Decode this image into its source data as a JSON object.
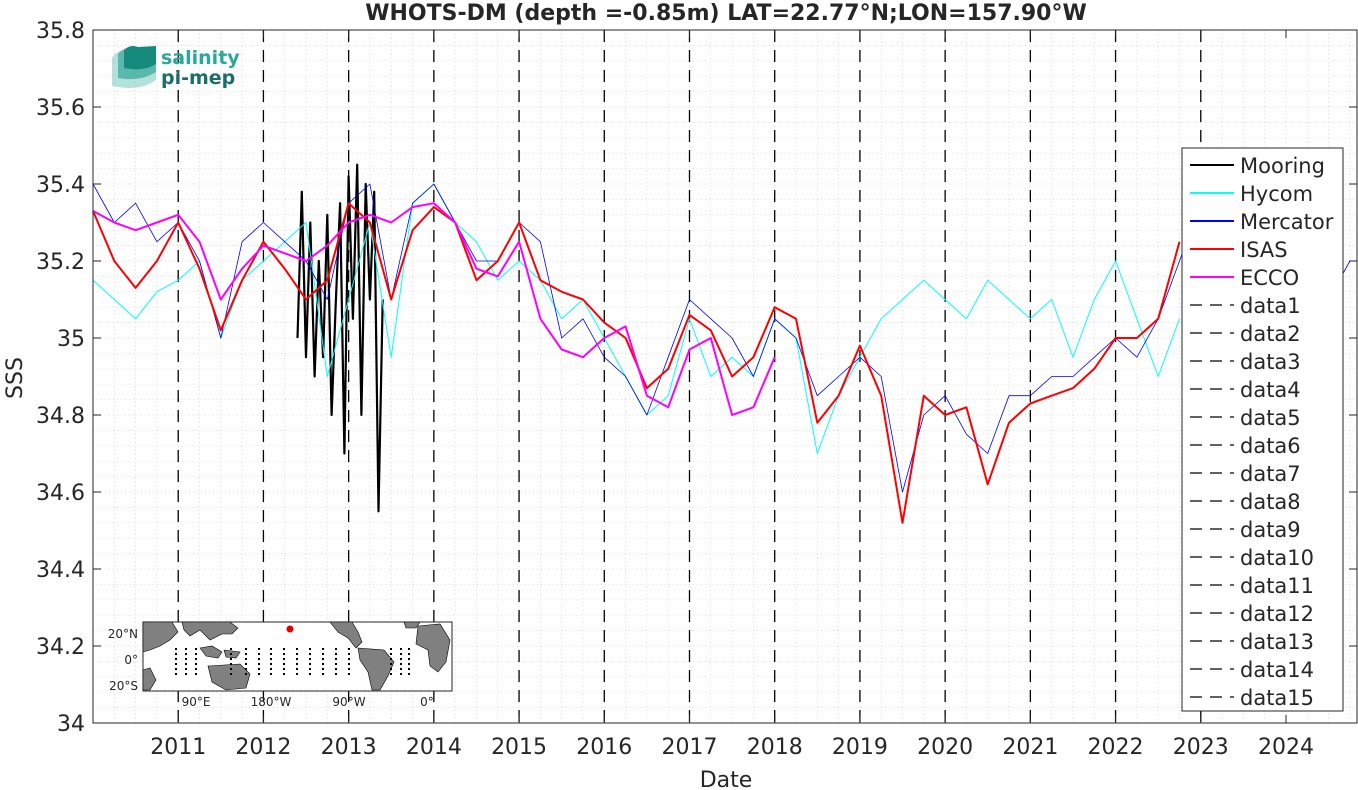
{
  "logo": {
    "line1": "salinity",
    "line2": "pi-mep"
  },
  "chart_data": {
    "type": "line",
    "title": "WHOTS-DM (depth =-0.85m) LAT=22.77°N;LON=157.90°W",
    "xlabel": "Date",
    "ylabel": "SSS",
    "xlim": [
      "2010-01-01",
      "2024-11-01"
    ],
    "ylim": [
      34.0,
      35.8
    ],
    "grid": "minor-dotted",
    "x_ticks": [
      "2011",
      "2012",
      "2013",
      "2014",
      "2015",
      "2016",
      "2017",
      "2018",
      "2019",
      "2020",
      "2021",
      "2022",
      "2023",
      "2024"
    ],
    "y_ticks": [
      "34",
      "34.2",
      "34.4",
      "34.6",
      "34.8",
      "35",
      "35.2",
      "35.4",
      "35.6",
      "35.8"
    ],
    "legend_position": "right",
    "colors": {
      "mooring": "#000000",
      "hycom": "#00ffff",
      "mercator": "#0000ff",
      "isas": "#ff0000",
      "ecco": "#ff00ff",
      "deployments": "#000000"
    },
    "series": [
      {
        "name": "Mooring",
        "color": "#000000",
        "style": "solid",
        "x": [
          2012.4,
          2012.45,
          2012.5,
          2012.55,
          2012.6,
          2012.65,
          2012.7,
          2012.75,
          2012.8,
          2012.85,
          2012.9,
          2012.95,
          2013.0,
          2013.05,
          2013.1,
          2013.15,
          2013.2,
          2013.25,
          2013.3,
          2013.35,
          2013.4
        ],
        "y": [
          35.0,
          35.38,
          34.95,
          35.3,
          34.9,
          35.2,
          34.95,
          35.32,
          34.8,
          35.1,
          35.35,
          34.7,
          35.42,
          35.05,
          35.45,
          34.8,
          35.4,
          35.1,
          35.38,
          34.55,
          35.1
        ]
      },
      {
        "name": "Hycom",
        "color": "#00ffff",
        "style": "solid",
        "x": [
          2010.0,
          2010.25,
          2010.5,
          2010.75,
          2011.0,
          2011.25,
          2011.5,
          2011.75,
          2012.0,
          2012.25,
          2012.5,
          2012.75,
          2013.0,
          2013.25,
          2013.5,
          2013.75,
          2014.0,
          2014.25,
          2014.5,
          2014.75,
          2015.0,
          2015.25,
          2015.5,
          2015.75,
          2016.0,
          2016.25,
          2016.5,
          2016.75,
          2017.0,
          2017.25,
          2017.5,
          2017.75,
          2018.0,
          2018.25,
          2018.5,
          2018.75,
          2019.0,
          2019.25,
          2019.5,
          2019.75,
          2020.0,
          2020.25,
          2020.5,
          2020.75,
          2021.0,
          2021.25,
          2021.5,
          2021.75,
          2022.0,
          2022.25,
          2022.5,
          2022.75
        ],
        "y": [
          35.15,
          35.1,
          35.05,
          35.12,
          35.15,
          35.2,
          35.0,
          35.15,
          35.2,
          35.25,
          35.3,
          34.9,
          35.1,
          35.3,
          34.95,
          35.35,
          35.4,
          35.3,
          35.25,
          35.15,
          35.2,
          35.15,
          35.05,
          35.1,
          35.0,
          34.9,
          34.8,
          34.85,
          35.05,
          34.9,
          34.95,
          34.9,
          35.05,
          35.0,
          34.7,
          34.85,
          34.95,
          35.05,
          35.1,
          35.15,
          35.1,
          35.05,
          35.15,
          35.1,
          35.05,
          35.1,
          34.95,
          35.1,
          35.2,
          35.05,
          34.9,
          35.05
        ]
      },
      {
        "name": "Mercator",
        "color": "#0000ff",
        "style": "solid",
        "x": [
          2010.0,
          2010.25,
          2010.5,
          2010.75,
          2011.0,
          2011.25,
          2011.5,
          2011.75,
          2012.0,
          2012.25,
          2012.5,
          2012.75,
          2013.0,
          2013.25,
          2013.5,
          2013.75,
          2014.0,
          2014.25,
          2014.5,
          2014.75,
          2015.0,
          2015.25,
          2015.5,
          2015.75,
          2016.0,
          2016.25,
          2016.5,
          2016.75,
          2017.0,
          2017.25,
          2017.5,
          2017.75,
          2018.0,
          2018.25,
          2018.5,
          2018.75,
          2019.0,
          2019.25,
          2019.5,
          2019.75,
          2020.0,
          2020.25,
          2020.5,
          2020.75,
          2021.0,
          2021.25,
          2021.5,
          2021.75,
          2022.0,
          2022.25,
          2022.5,
          2022.75,
          2023.0,
          2023.25,
          2023.5,
          2023.75,
          2024.0,
          2024.25,
          2024.5,
          2024.75
        ],
        "y": [
          35.4,
          35.3,
          35.35,
          35.25,
          35.3,
          35.2,
          35.0,
          35.25,
          35.3,
          35.25,
          35.2,
          35.1,
          35.35,
          35.4,
          35.1,
          35.35,
          35.4,
          35.3,
          35.2,
          35.2,
          35.3,
          35.25,
          35.0,
          35.05,
          34.95,
          34.9,
          34.8,
          34.95,
          35.1,
          35.05,
          35.0,
          34.9,
          35.05,
          35.0,
          34.85,
          34.9,
          34.95,
          34.9,
          34.6,
          34.8,
          34.85,
          34.75,
          34.7,
          34.85,
          34.85,
          34.9,
          34.9,
          34.95,
          35.0,
          34.95,
          35.05,
          35.2,
          35.35,
          35.15,
          35.2,
          35.05,
          35.1,
          35.15,
          35.1,
          35.2
        ]
      },
      {
        "name": "ISAS",
        "color": "#ff0000",
        "style": "solid",
        "x": [
          2010.0,
          2010.25,
          2010.5,
          2010.75,
          2011.0,
          2011.25,
          2011.5,
          2011.75,
          2012.0,
          2012.25,
          2012.5,
          2012.75,
          2013.0,
          2013.25,
          2013.5,
          2013.75,
          2014.0,
          2014.25,
          2014.5,
          2014.75,
          2015.0,
          2015.25,
          2015.5,
          2015.75,
          2016.0,
          2016.25,
          2016.5,
          2016.75,
          2017.0,
          2017.25,
          2017.5,
          2017.75,
          2018.0,
          2018.25,
          2018.5,
          2018.75,
          2019.0,
          2019.25,
          2019.5,
          2019.75,
          2020.0,
          2020.25,
          2020.5,
          2020.75,
          2021.0,
          2021.25,
          2021.5,
          2021.75,
          2022.0,
          2022.25,
          2022.5,
          2022.75
        ],
        "y": [
          35.33,
          35.2,
          35.13,
          35.2,
          35.3,
          35.18,
          35.02,
          35.15,
          35.25,
          35.18,
          35.1,
          35.15,
          35.35,
          35.3,
          35.1,
          35.28,
          35.34,
          35.3,
          35.15,
          35.2,
          35.3,
          35.15,
          35.12,
          35.1,
          35.04,
          35.0,
          34.87,
          34.92,
          35.06,
          35.02,
          34.9,
          34.95,
          35.08,
          35.05,
          34.78,
          34.85,
          34.98,
          34.85,
          34.52,
          34.85,
          34.8,
          34.82,
          34.62,
          34.78,
          34.83,
          34.85,
          34.87,
          34.92,
          35.0,
          35.0,
          35.05,
          35.25
        ]
      },
      {
        "name": "ECCO",
        "color": "#ff00ff",
        "style": "solid",
        "x": [
          2010.0,
          2010.25,
          2010.5,
          2010.75,
          2011.0,
          2011.25,
          2011.5,
          2011.75,
          2012.0,
          2012.25,
          2012.5,
          2012.75,
          2013.0,
          2013.25,
          2013.5,
          2013.75,
          2014.0,
          2014.25,
          2014.5,
          2014.75,
          2015.0,
          2015.25,
          2015.5,
          2015.75,
          2016.0,
          2016.25,
          2016.5,
          2016.75,
          2017.0,
          2017.25,
          2017.5,
          2017.75,
          2018.0
        ],
        "y": [
          35.33,
          35.3,
          35.28,
          35.3,
          35.32,
          35.25,
          35.1,
          35.18,
          35.24,
          35.22,
          35.2,
          35.24,
          35.3,
          35.32,
          35.3,
          35.34,
          35.35,
          35.3,
          35.18,
          35.16,
          35.25,
          35.05,
          34.97,
          34.95,
          35.0,
          35.03,
          34.85,
          34.82,
          34.97,
          35.0,
          34.8,
          34.82,
          34.95
        ]
      }
    ],
    "deployments": [
      {
        "name": "data1",
        "x": 2011.0
      },
      {
        "name": "data2",
        "x": 2012.0
      },
      {
        "name": "data3",
        "x": 2013.0
      },
      {
        "name": "data4",
        "x": 2014.0
      },
      {
        "name": "data5",
        "x": 2015.0
      },
      {
        "name": "data6",
        "x": 2016.0
      },
      {
        "name": "data7",
        "x": 2017.0
      },
      {
        "name": "data8",
        "x": 2018.0
      },
      {
        "name": "data9",
        "x": 2019.0
      },
      {
        "name": "data10",
        "x": 2020.0
      },
      {
        "name": "data11",
        "x": 2021.0
      },
      {
        "name": "data12",
        "x": 2022.0
      },
      {
        "name": "data13",
        "x": 2023.0
      },
      {
        "name": "data14",
        "x": 2023.0
      },
      {
        "name": "data15",
        "x": 2023.0
      }
    ]
  },
  "inset_map": {
    "y_labels": [
      "20°N",
      "0°",
      "20°S"
    ],
    "x_labels": [
      "90°E",
      "180°W",
      "90°W",
      "0°"
    ]
  }
}
